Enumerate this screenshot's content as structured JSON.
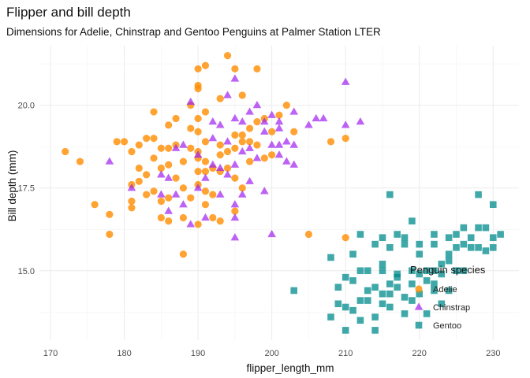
{
  "chart_data": {
    "type": "scatter",
    "title": "Flipper and bill depth",
    "subtitle": "Dimensions for Adelie, Chinstrap and Gentoo Penguins at Palmer Station LTER",
    "xlabel": "flipper_length_mm",
    "ylabel": "Bill depth (mm)",
    "xlim": [
      168.5,
      233.5
    ],
    "ylim": [
      12.9,
      21.8
    ],
    "x_ticks": [
      170,
      180,
      190,
      200,
      210,
      220,
      230
    ],
    "y_ticks": [
      15.0,
      17.5,
      20.0
    ],
    "y_tick_labels": [
      "15.0",
      "17.5",
      "20.0"
    ],
    "grid": true,
    "legend": {
      "title": "Penguin species",
      "position": "bottom-right (inside)"
    },
    "series": [
      {
        "name": "Adelie",
        "color": "#FF8C00",
        "shape": "circle",
        "points": [
          [
            172,
            18.6
          ],
          [
            174,
            18.3
          ],
          [
            176,
            17.0
          ],
          [
            178,
            16.7
          ],
          [
            178,
            16.1
          ],
          [
            179,
            18.9
          ],
          [
            180,
            18.9
          ],
          [
            181,
            17.1
          ],
          [
            181,
            18.6
          ],
          [
            181,
            17.6
          ],
          [
            181,
            16.9
          ],
          [
            182,
            18.8
          ],
          [
            182,
            18.1
          ],
          [
            183,
            17.9
          ],
          [
            183,
            19.0
          ],
          [
            183,
            17.3
          ],
          [
            184,
            18.4
          ],
          [
            184,
            19.8
          ],
          [
            184,
            17.4
          ],
          [
            185,
            18.7
          ],
          [
            185,
            17.1
          ],
          [
            185,
            16.6
          ],
          [
            185,
            18.1
          ],
          [
            186,
            19.4
          ],
          [
            186,
            16.5
          ],
          [
            186,
            18.2
          ],
          [
            186,
            17.2
          ],
          [
            187,
            17.8
          ],
          [
            187,
            19.6
          ],
          [
            188,
            18.3
          ],
          [
            188,
            17.5
          ],
          [
            188,
            16.6
          ],
          [
            188,
            15.5
          ],
          [
            189,
            19.3
          ],
          [
            189,
            17.2
          ],
          [
            189,
            20.0
          ],
          [
            189,
            18.7
          ],
          [
            190,
            20.5
          ],
          [
            190,
            19.2
          ],
          [
            190,
            19.6
          ],
          [
            190,
            17.6
          ],
          [
            190,
            18.6
          ],
          [
            190,
            16.4
          ],
          [
            190,
            18.0
          ],
          [
            190,
            21.1
          ],
          [
            190,
            20.6
          ],
          [
            191,
            18.9
          ],
          [
            191,
            18.3
          ],
          [
            191,
            21.2
          ],
          [
            191,
            17.0
          ],
          [
            191,
            18.0
          ],
          [
            191,
            19.8
          ],
          [
            192,
            17.3
          ],
          [
            192,
            16.6
          ],
          [
            192,
            18.1
          ],
          [
            193,
            18.8
          ],
          [
            193,
            20.2
          ],
          [
            193,
            18.5
          ],
          [
            193,
            16.5
          ],
          [
            194,
            21.5
          ],
          [
            194,
            18.6
          ],
          [
            194,
            18.1
          ],
          [
            195,
            19.1
          ],
          [
            195,
            17.8
          ],
          [
            195,
            18.7
          ],
          [
            195,
            16.8
          ],
          [
            195,
            21.1
          ],
          [
            196,
            19.1
          ],
          [
            196,
            20.3
          ],
          [
            196,
            17.5
          ],
          [
            196,
            18.9
          ],
          [
            197,
            19.3
          ],
          [
            197,
            18.3
          ],
          [
            197,
            18.9
          ],
          [
            198,
            21.1
          ],
          [
            198,
            19.5
          ],
          [
            198,
            18.8
          ],
          [
            199,
            19.6
          ],
          [
            199,
            18.4
          ],
          [
            200,
            18.5
          ],
          [
            200,
            19.2
          ],
          [
            201,
            19.7
          ],
          [
            202,
            20.0
          ],
          [
            203,
            19.2
          ],
          [
            205,
            16.1
          ],
          [
            208,
            18.9
          ],
          [
            210,
            19.0
          ],
          [
            210,
            16.0
          ],
          [
            184,
            19.0
          ],
          [
            186,
            18.7
          ],
          [
            190,
            18.4
          ],
          [
            191,
            17.4
          ],
          [
            193,
            18.0
          ],
          [
            187,
            18.8
          ],
          [
            182,
            17.7
          ]
        ]
      },
      {
        "name": "Chinstrap",
        "color": "#A020F0",
        "shape": "triangle",
        "points": [
          [
            178,
            18.3
          ],
          [
            181,
            17.5
          ],
          [
            185,
            17.9
          ],
          [
            185,
            17.3
          ],
          [
            186,
            17.8
          ],
          [
            187,
            18.7
          ],
          [
            187,
            17.3
          ],
          [
            188,
            18.8
          ],
          [
            188,
            17.0
          ],
          [
            189,
            16.4
          ],
          [
            190,
            18.5
          ],
          [
            190,
            17.5
          ],
          [
            191,
            17.8
          ],
          [
            191,
            16.6
          ],
          [
            192,
            18.2
          ],
          [
            192,
            19.5
          ],
          [
            193,
            17.3
          ],
          [
            193,
            19.4
          ],
          [
            193,
            18.1
          ],
          [
            194,
            17.9
          ],
          [
            194,
            18.9
          ],
          [
            194,
            20.3
          ],
          [
            195,
            18.2
          ],
          [
            195,
            17.0
          ],
          [
            195,
            19.6
          ],
          [
            195,
            16.6
          ],
          [
            196,
            19.5
          ],
          [
            196,
            17.3
          ],
          [
            196,
            18.6
          ],
          [
            197,
            19.8
          ],
          [
            197,
            18.7
          ],
          [
            197,
            17.7
          ],
          [
            198,
            20.0
          ],
          [
            198,
            18.4
          ],
          [
            199,
            19.2
          ],
          [
            199,
            17.4
          ],
          [
            200,
            19.7
          ],
          [
            200,
            18.8
          ],
          [
            201,
            19.5
          ],
          [
            201,
            18.5
          ],
          [
            201,
            19.3
          ],
          [
            202,
            18.9
          ],
          [
            202,
            18.3
          ],
          [
            203,
            18.2
          ],
          [
            203,
            19.8
          ],
          [
            205,
            19.4
          ],
          [
            206,
            19.6
          ],
          [
            207,
            19.6
          ],
          [
            210,
            19.4
          ],
          [
            210,
            20.7
          ],
          [
            212,
            19.5
          ],
          [
            201,
            18.8
          ],
          [
            203,
            18.8
          ],
          [
            192,
            19.0
          ],
          [
            200,
            16.1
          ],
          [
            186,
            16.8
          ],
          [
            195,
            16.0
          ],
          [
            189,
            20.1
          ],
          [
            199,
            19.5
          ],
          [
            195,
            20.8
          ]
        ]
      },
      {
        "name": "Gentoo",
        "color": "#008B8B",
        "shape": "square",
        "points": [
          [
            203,
            14.4
          ],
          [
            208,
            15.4
          ],
          [
            209,
            14.5
          ],
          [
            210,
            14.8
          ],
          [
            210,
            13.9
          ],
          [
            211,
            14.7
          ],
          [
            211,
            13.8
          ],
          [
            212,
            14.1
          ],
          [
            212,
            15.0
          ],
          [
            212,
            13.5
          ],
          [
            213,
            14.4
          ],
          [
            213,
            15.0
          ],
          [
            214,
            14.5
          ],
          [
            214,
            13.6
          ],
          [
            215,
            15.0
          ],
          [
            215,
            14.3
          ],
          [
            215,
            14.0
          ],
          [
            215,
            15.2
          ],
          [
            216,
            14.6
          ],
          [
            216,
            13.9
          ],
          [
            216,
            15.7
          ],
          [
            216,
            14.3
          ],
          [
            217,
            14.9
          ],
          [
            217,
            16.1
          ],
          [
            217,
            14.5
          ],
          [
            218,
            14.2
          ],
          [
            218,
            13.7
          ],
          [
            218,
            15.8
          ],
          [
            219,
            14.6
          ],
          [
            219,
            15.0
          ],
          [
            219,
            14.1
          ],
          [
            220,
            14.9
          ],
          [
            220,
            15.8
          ],
          [
            220,
            14.3
          ],
          [
            221,
            14.7
          ],
          [
            221,
            15.0
          ],
          [
            221,
            13.7
          ],
          [
            222,
            15.0
          ],
          [
            222,
            14.4
          ],
          [
            222,
            15.8
          ],
          [
            222,
            16.1
          ],
          [
            223,
            14.9
          ],
          [
            223,
            15.2
          ],
          [
            223,
            14.0
          ],
          [
            224,
            15.3
          ],
          [
            224,
            15.5
          ],
          [
            224,
            16.0
          ],
          [
            224,
            14.4
          ],
          [
            225,
            15.0
          ],
          [
            225,
            15.7
          ],
          [
            225,
            16.1
          ],
          [
            226,
            15.0
          ],
          [
            226,
            15.8
          ],
          [
            226,
            16.3
          ],
          [
            227,
            15.7
          ],
          [
            227,
            16.0
          ],
          [
            228,
            15.7
          ],
          [
            228,
            16.3
          ],
          [
            228,
            17.3
          ],
          [
            229,
            16.3
          ],
          [
            229,
            15.6
          ],
          [
            230,
            16.0
          ],
          [
            230,
            17.0
          ],
          [
            230,
            15.7
          ],
          [
            231,
            16.1
          ],
          [
            216,
            17.3
          ],
          [
            212,
            16.1
          ],
          [
            214,
            15.8
          ],
          [
            211,
            15.5
          ],
          [
            219,
            16.5
          ],
          [
            209,
            14.0
          ],
          [
            208,
            13.6
          ],
          [
            210,
            13.2
          ],
          [
            214,
            13.2
          ],
          [
            220,
            15.5
          ],
          [
            218,
            16.0
          ],
          [
            215,
            16.0
          ],
          [
            217,
            14.8
          ],
          [
            213,
            14.1
          ],
          [
            222,
            14.6
          ]
        ]
      }
    ]
  }
}
